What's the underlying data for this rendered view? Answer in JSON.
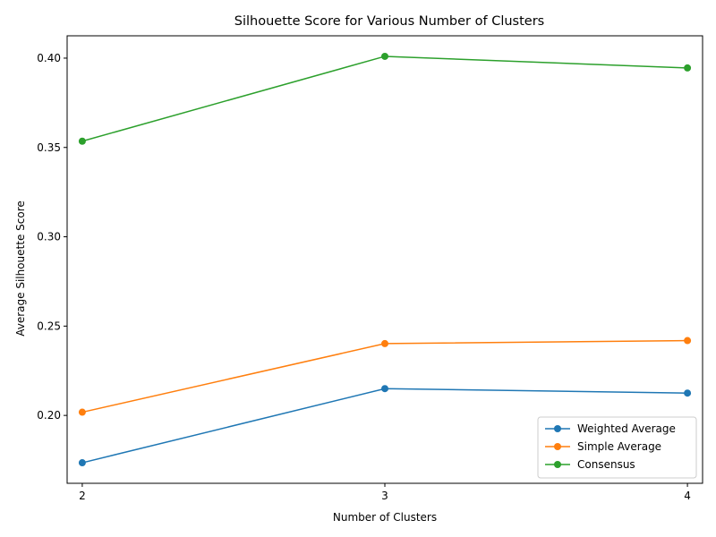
{
  "chart_data": {
    "type": "line",
    "title": "Silhouette Score for Various Number of Clusters",
    "xlabel": "Number of Clusters",
    "ylabel": "Average Silhouette Score",
    "x": [
      2,
      3,
      4
    ],
    "x_tick_labels": [
      "2",
      "3",
      "4"
    ],
    "y_ticks": [
      0.2,
      0.25,
      0.3,
      0.35,
      0.4
    ],
    "y_tick_labels": [
      "0.20",
      "0.25",
      "0.30",
      "0.35",
      "0.40"
    ],
    "xlim": [
      1.95,
      4.05
    ],
    "ylim": [
      0.162,
      0.4125
    ],
    "grid": false,
    "legend_position": "lower-right",
    "series": [
      {
        "name": "Weighted Average",
        "color": "#1f77b4",
        "marker": "circle",
        "values": [
          0.1735,
          0.215,
          0.2125
        ]
      },
      {
        "name": "Simple Average",
        "color": "#ff7f0e",
        "marker": "circle",
        "values": [
          0.2018,
          0.2402,
          0.2419
        ]
      },
      {
        "name": "Consensus",
        "color": "#2ca02c",
        "marker": "circle",
        "values": [
          0.3535,
          0.401,
          0.3945
        ]
      }
    ]
  }
}
